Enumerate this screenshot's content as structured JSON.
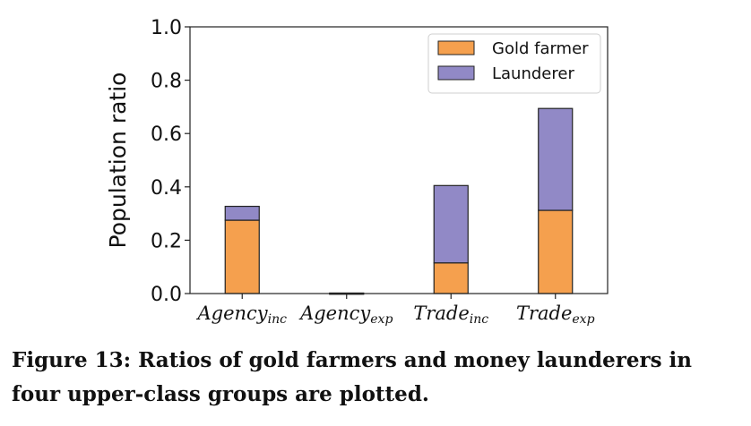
{
  "chart_data": {
    "type": "bar",
    "stacked": true,
    "categories": [
      {
        "main": "Agency",
        "sub": "inc"
      },
      {
        "main": "Agency",
        "sub": "exp"
      },
      {
        "main": "Trade",
        "sub": "inc"
      },
      {
        "main": "Trade",
        "sub": "exp"
      }
    ],
    "series": [
      {
        "name": "Gold farmer",
        "color": "#f5a04e",
        "values": [
          0.275,
          0.0,
          0.115,
          0.312
        ]
      },
      {
        "name": "Launderer",
        "color": "#9189c6",
        "values": [
          0.052,
          0.002,
          0.29,
          0.382
        ]
      }
    ],
    "ylabel": "Population ratio",
    "xlabel": "",
    "ylim": [
      0,
      1.0
    ],
    "yticks": [
      "0.0",
      "0.2",
      "0.4",
      "0.6",
      "0.8",
      "1.0"
    ],
    "grid": false,
    "legend_position": "top-right"
  },
  "caption": "Figure 13: Ratios of gold farmers and money launderers in four upper-class groups are plotted."
}
